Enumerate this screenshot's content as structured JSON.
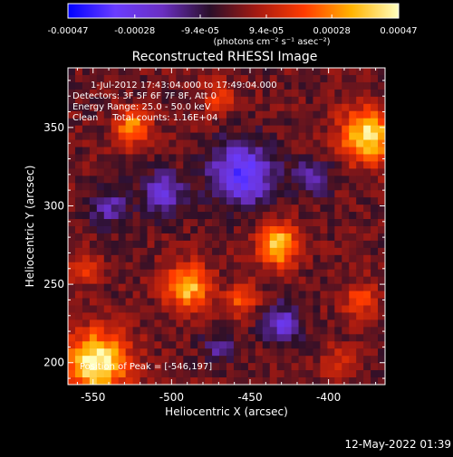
{
  "colors": {
    "background": "#000000",
    "axes": "#ffffff",
    "overlay_text": "#ffffff",
    "colormap_stops": [
      "#0000ff",
      "#6a3cff",
      "#6a2fc2",
      "#2a0f2a",
      "#a51a12",
      "#ff3b00",
      "#ffb300",
      "#ffffbf"
    ]
  },
  "colorbar": {
    "ticklabels": [
      "-0.00047",
      "-0.00028",
      "-9.4e-05",
      "9.4e-05",
      "0.00028",
      "0.00047"
    ],
    "tickvalues": [
      -0.00047,
      -0.00028,
      -9.4e-05,
      9.4e-05,
      0.00028,
      0.00047
    ],
    "range": [
      -0.00047,
      0.00047
    ],
    "unit_label": "(photons cm⁻² s⁻¹ asec⁻²)"
  },
  "title": "Reconstructed RHESSI Image",
  "overlay": {
    "line1": "1-Jul-2012 17:43:04.000 to 17:49:04.000",
    "line2": "Detectors: 3F 5F 6F 7F 8F, Att 0",
    "line3": "Energy Range: 25.0 - 50.0 keV",
    "line4": "Clean     Total counts: 1.16E+04",
    "peak": "Position of Peak = [-546,197]"
  },
  "footer": {
    "timestamp": "12-May-2022 01:39"
  },
  "chart_data": {
    "type": "heatmap",
    "title": "Reconstructed RHESSI Image",
    "xlabel": "Heliocentric X (arcsec)",
    "ylabel": "Heliocentric Y (arcsec)",
    "xlim": [
      -566,
      -364
    ],
    "ylim": [
      186,
      388
    ],
    "xticks": [
      -550,
      -500,
      -450,
      -400
    ],
    "xticklabels": [
      "-550",
      "-500",
      "-450",
      "-400"
    ],
    "yticks": [
      200,
      250,
      300,
      350
    ],
    "yticklabels": [
      "200",
      "250",
      "300",
      "350"
    ],
    "colorbar_range": [
      -0.00047,
      0.00047
    ],
    "grid": false,
    "colorbar_placement": "top",
    "hotspots": [
      {
        "x": -548,
        "y": 200,
        "value": 0.00047,
        "sigma": 14
      },
      {
        "x": -375,
        "y": 345,
        "value": 0.00042,
        "sigma": 12
      },
      {
        "x": -432,
        "y": 275,
        "value": 0.0004,
        "sigma": 9
      },
      {
        "x": -490,
        "y": 248,
        "value": 0.00037,
        "sigma": 10
      },
      {
        "x": -525,
        "y": 350,
        "value": 0.0003,
        "sigma": 8
      },
      {
        "x": -380,
        "y": 240,
        "value": 0.0002,
        "sigma": 8
      },
      {
        "x": -455,
        "y": 240,
        "value": 0.00022,
        "sigma": 7
      },
      {
        "x": -555,
        "y": 260,
        "value": 0.00016,
        "sigma": 7
      },
      {
        "x": -470,
        "y": 370,
        "value": 0.00018,
        "sigma": 7
      },
      {
        "x": -395,
        "y": 200,
        "value": 0.00015,
        "sigma": 7
      }
    ],
    "coldspots": [
      {
        "x": -455,
        "y": 320,
        "value": -0.00036,
        "sigma": 14
      },
      {
        "x": -505,
        "y": 308,
        "value": -0.00028,
        "sigma": 9
      },
      {
        "x": -410,
        "y": 318,
        "value": -0.0002,
        "sigma": 8
      },
      {
        "x": -430,
        "y": 225,
        "value": -0.00024,
        "sigma": 9
      },
      {
        "x": -540,
        "y": 300,
        "value": -0.00018,
        "sigma": 9
      },
      {
        "x": -470,
        "y": 210,
        "value": -0.00014,
        "sigma": 8
      }
    ],
    "peak_position": [
      -546,
      197
    ]
  }
}
